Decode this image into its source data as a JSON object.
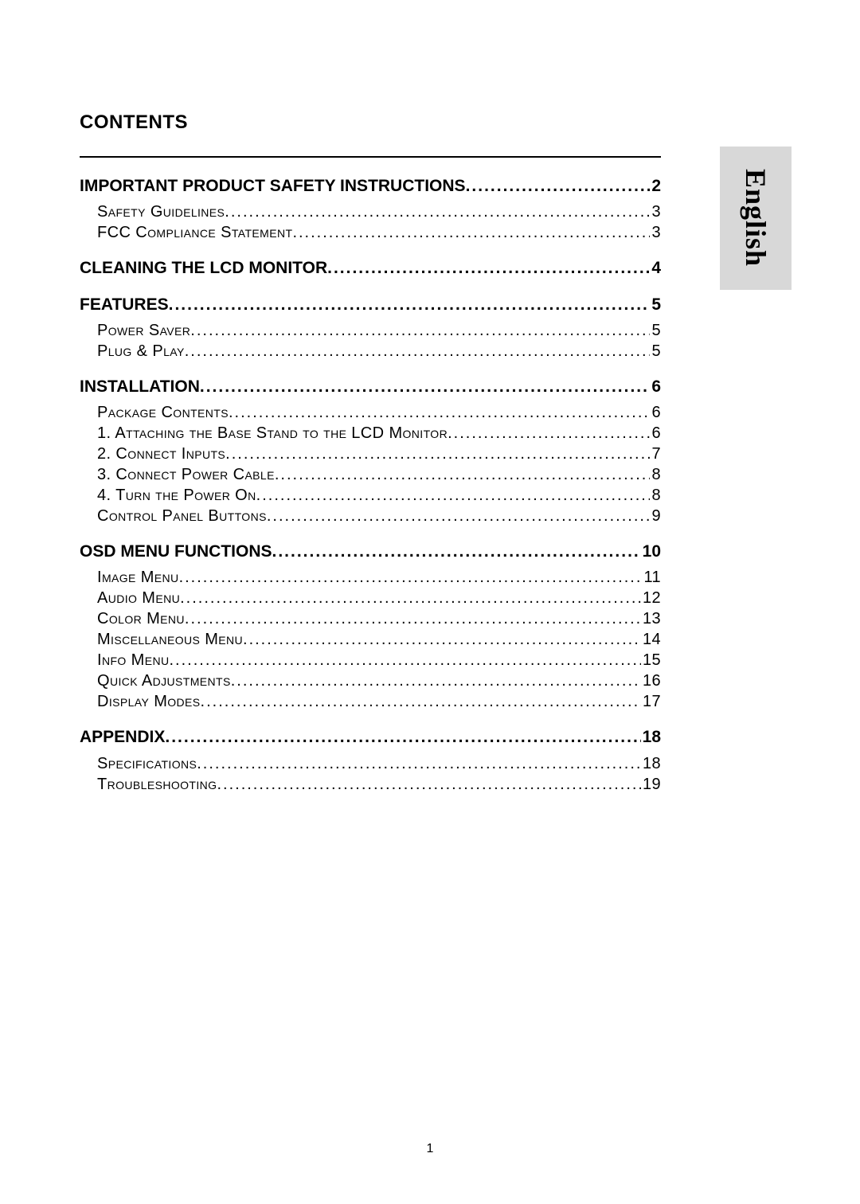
{
  "heading": "CONTENTS",
  "language_tab": "English",
  "page_number": "1",
  "colors": {
    "background": "#ffffff",
    "text": "#000000",
    "tab_background": "#d8d8d8",
    "rule": "#000000"
  },
  "typography": {
    "body_font": "Arial",
    "tab_font": "Times New Roman",
    "heading_size_pt": 18,
    "section_size_pt": 16,
    "sub_size_pt": 15,
    "tab_size_pt": 27
  },
  "entries": [
    {
      "type": "section",
      "label": "IMPORTANT PRODUCT SAFETY INSTRUCTIONS",
      "page": "2",
      "first": true
    },
    {
      "type": "sub",
      "label": "Safety Guidelines",
      "page": "3"
    },
    {
      "type": "sub",
      "label": "FCC Compliance Statement",
      "page": "3"
    },
    {
      "type": "section",
      "label": "CLEANING THE LCD MONITOR",
      "page": "4"
    },
    {
      "type": "section",
      "label": "FEATURES",
      "page": "5"
    },
    {
      "type": "sub",
      "label": "Power Saver",
      "page": "5"
    },
    {
      "type": "sub",
      "label": "Plug & Play",
      "page": "5"
    },
    {
      "type": "section",
      "label": "INSTALLATION",
      "page": "6"
    },
    {
      "type": "sub",
      "label": "Package Contents",
      "page": "6"
    },
    {
      "type": "sub",
      "label": "1. Attaching the Base Stand to the LCD Monitor",
      "page": "6"
    },
    {
      "type": "sub",
      "label": "2. Connect Inputs",
      "page": "7"
    },
    {
      "type": "sub",
      "label": "3. Connect Power Cable",
      "page": "8"
    },
    {
      "type": "sub",
      "label": "4. Turn the Power On",
      "page": "8"
    },
    {
      "type": "sub",
      "label": "Control Panel Buttons",
      "page": "9"
    },
    {
      "type": "section",
      "label": "OSD MENU FUNCTIONS",
      "page": "10"
    },
    {
      "type": "sub",
      "label": "Image Menu",
      "page": "11"
    },
    {
      "type": "sub",
      "label": "Audio Menu",
      "page": "12"
    },
    {
      "type": "sub",
      "label": "Color Menu",
      "page": "13"
    },
    {
      "type": "sub",
      "label": "Miscellaneous Menu",
      "page": "14"
    },
    {
      "type": "sub",
      "label": "Info Menu",
      "page": "15"
    },
    {
      "type": "sub",
      "label": "Quick Adjustments",
      "page": "16"
    },
    {
      "type": "sub",
      "label": "Display Modes",
      "page": "17",
      "gap_after": true
    },
    {
      "type": "section",
      "label": "APPENDIX",
      "page": "18"
    },
    {
      "type": "sub",
      "label": "Specifications",
      "page": "18"
    },
    {
      "type": "sub",
      "label": "Troubleshooting",
      "page": "19"
    }
  ]
}
